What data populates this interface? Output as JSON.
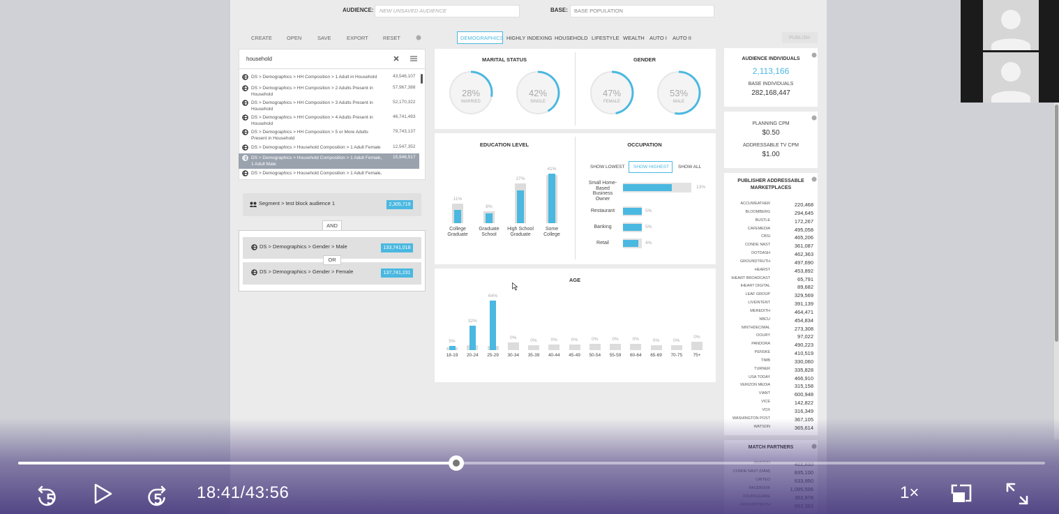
{
  "toolbar": {
    "audience_label": "AUDIENCE:",
    "audience_placeholder": "NEW UNSAVED AUDIENCE",
    "base_label": "BASE:",
    "base_value": "BASE POPULATION"
  },
  "actions": [
    "CREATE",
    "OPEN",
    "SAVE",
    "EXPORT",
    "RESET"
  ],
  "tabs": [
    "DEMOGRAPHICS",
    "HIGHLY INDEXING",
    "HOUSEHOLD",
    "LIFESTYLE",
    "WEALTH",
    "AUTO I",
    "AUTO II"
  ],
  "publish": "PUBLISH",
  "search": {
    "query": "household"
  },
  "results": [
    {
      "label": "DS > Demographics > HH Composition > 1 Adult in Household",
      "count": "43,546,107"
    },
    {
      "label": "DS > Demographics > HH Composition > 2 Adults Present in Household",
      "count": "57,967,388"
    },
    {
      "label": "DS > Demographics > HH Composition > 3 Adults Present in Household",
      "count": "52,170,322"
    },
    {
      "label": "DS > Demographics > HH Composition > 4 Adults Present in Household",
      "count": "46,741,493"
    },
    {
      "label": "DS > Demographics > HH Composition > 5 or More Adults Present in Household",
      "count": "79,743,137"
    },
    {
      "label": "DS > Demographics > Household Composition > 1 Adult Female",
      "count": "12,547,352"
    },
    {
      "label": "DS > Demographics > Household Composition > 1 Adult Female, 1 Adult Male",
      "count": "15,946,517"
    },
    {
      "label": "DS > Demographics > Household Composition > 1 Adult Female,"
    }
  ],
  "builder": {
    "segment": {
      "label": "Segment > test block audience 1",
      "count": "2,305,719"
    },
    "and": "AND",
    "or": "OR",
    "rules": [
      {
        "label": "DS > Demographics > Gender > Male",
        "count": "133,741,018"
      },
      {
        "label": "DS > Demographics > Gender > Female",
        "count": "137,741,231"
      }
    ]
  },
  "chart_data": [
    {
      "type": "donut",
      "title": "MARITAL STATUS",
      "categories": [
        "MARRIED",
        "SINGLE"
      ],
      "values": [
        28,
        42
      ],
      "value_labels": [
        "28%",
        "42%"
      ],
      "color": "#4ab8e0"
    },
    {
      "type": "donut",
      "title": "GENDER",
      "categories": [
        "FEMALE",
        "MALE"
      ],
      "values": [
        47,
        53
      ],
      "value_labels": [
        "47%",
        "53%"
      ],
      "color": "#4ab8e0"
    },
    {
      "type": "bar",
      "title": "EDUCATION LEVEL",
      "categories": [
        "College Graduate",
        "Graduate School",
        "High School Graduate",
        "Some College"
      ],
      "series": [
        {
          "color": "#dcdcdc",
          "values": [
            16,
            10,
            33,
            40
          ]
        },
        {
          "color": "#4ab8e0",
          "values": [
            11,
            8,
            27,
            41
          ],
          "value_labels": [
            "11%",
            "8%",
            "27%",
            "41%"
          ]
        }
      ]
    },
    {
      "type": "hbar",
      "title": "OCCUPATION",
      "controls": [
        "SHOW LOWEST",
        "SHOW HIGHEST",
        "SHOW ALL"
      ],
      "categories": [
        "Small Home-Based Business Owner",
        "Restaurant",
        "Banking",
        "Retail"
      ],
      "values": [
        13,
        5,
        5,
        4
      ],
      "value_labels": [
        "13%",
        "5%",
        "5%",
        "4%"
      ],
      "color": "#4ab8e0"
    },
    {
      "type": "bar",
      "title": "AGE",
      "categories": [
        "18-19",
        "20-24",
        "25-29",
        "30-34",
        "35-39",
        "40-44",
        "45-49",
        "50-54",
        "55-59",
        "60-64",
        "65-69",
        "70-75",
        "75+"
      ],
      "series": [
        {
          "color": "#dcdcdc",
          "values": [
            4,
            6,
            5,
            10,
            6,
            7,
            7,
            8,
            8,
            8,
            6,
            6,
            11
          ]
        },
        {
          "color": "#4ab8e0",
          "values": [
            5,
            32,
            64,
            0,
            0,
            0,
            0,
            0,
            0,
            0,
            0,
            0,
            0
          ],
          "value_labels": [
            "5%",
            "32%",
            "64%",
            "0%",
            "0%",
            "0%",
            "0%",
            "0%",
            "0%",
            "0%",
            "0%",
            "0%",
            "0%"
          ]
        }
      ]
    }
  ],
  "summary": {
    "audience_label": "AUDIENCE INDIVIDUALS",
    "audience_value": "2,113,166",
    "base_label": "BASE INDIVIDUALS",
    "base_value": "282,168,447",
    "planning_label": "PLANNING CPM",
    "planning_value": "$0.50",
    "tv_label": "ADDRESSABLE TV CPM",
    "tv_value": "$1.00"
  },
  "publishers": {
    "title": "PUBLISHER ADDRESSABLE MARKETPLACES",
    "rows": [
      [
        "ACCUWEATHER",
        "220,468"
      ],
      [
        "BLOOMBERG",
        "294,645"
      ],
      [
        "BUSTLE",
        "172,267"
      ],
      [
        "CAFEMEDIA",
        "495,058"
      ],
      [
        "CBSI",
        "465,206"
      ],
      [
        "CONDE NAST",
        "361,087"
      ],
      [
        "DOTDASH",
        "462,363"
      ],
      [
        "GROUNDTRUTH",
        "497,690"
      ],
      [
        "HEARST",
        "453,892"
      ],
      [
        "IHEART BROADCAST",
        "65,791"
      ],
      [
        "IHEART DIGITAL",
        "89,682"
      ],
      [
        "LEAF GROUP",
        "329,569"
      ],
      [
        "LIVEINTENT",
        "391,139"
      ],
      [
        "MEREDITH",
        "464,471"
      ],
      [
        "NBCU",
        "454,834"
      ],
      [
        "NINTHDECIMAL",
        "273,308"
      ],
      [
        "OOURY",
        "97,022"
      ],
      [
        "PANDORA",
        "490,223"
      ],
      [
        "PENSKE",
        "410,519"
      ],
      [
        "TIMB",
        "330,060"
      ],
      [
        "TURNER",
        "335,828"
      ],
      [
        "USA TODAY",
        "466,910"
      ],
      [
        "VERIZON MEDIA",
        "315,158"
      ],
      [
        "VIANT",
        "600,948"
      ],
      [
        "VICE",
        "142,822"
      ],
      [
        "VOX",
        "316,349"
      ],
      [
        "WASHINGTON POST",
        "367,105"
      ],
      [
        "WATSON",
        "365,614"
      ]
    ]
  },
  "match_partners": {
    "title": "MATCH PARTNERS",
    "rows": [
      [
        "AMAZON",
        "422,633"
      ],
      [
        "CONDE NAST (DAM)",
        "835,100"
      ],
      [
        "CRITEO",
        "633,950"
      ],
      [
        "FACEBOOK",
        "1,095,506"
      ],
      [
        "FOURSQUARE",
        "352,978"
      ],
      [
        "GROUNDTRUTH",
        "662,393"
      ]
    ]
  },
  "player": {
    "time": "18:41/43:56",
    "speed": "1×"
  }
}
